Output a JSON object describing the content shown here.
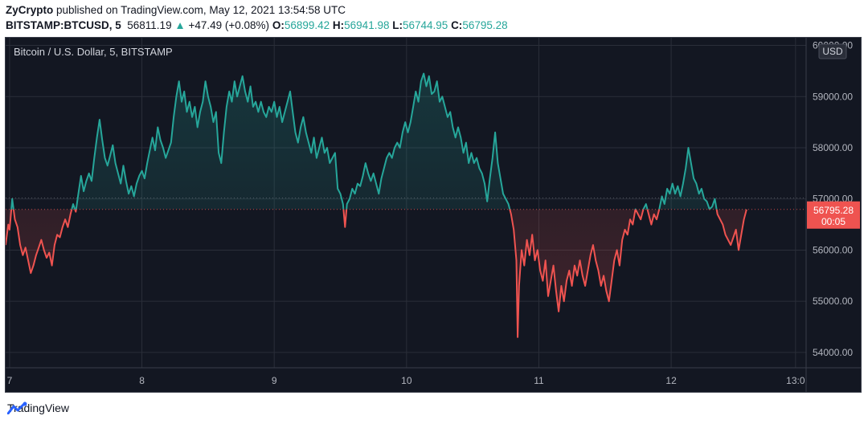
{
  "header": {
    "author": "ZyCrypto",
    "published_text": "published on TradingView.com, May 12, 2021 13:54:58 UTC",
    "symbol": "BITSTAMP:BTCUSD, 5",
    "last": "56811.19",
    "change_arrow": "▲",
    "change": "+47.49 (+0.08%)",
    "o_label": "O:",
    "o_value": "56899.42",
    "h_label": "H:",
    "h_value": "56941.98",
    "l_label": "L:",
    "l_value": "56744.95",
    "c_label": "C:",
    "c_value": "56795.28"
  },
  "chart_data": {
    "type": "line",
    "title": "Bitcoin / U.S. Dollar, 5, BITSTAMP",
    "currency": "USD",
    "baseline_price": 56795.28,
    "current_price_label": "56795.28",
    "countdown": "00:05",
    "x_ticks": [
      "7",
      "8",
      "9",
      "10",
      "11",
      "12",
      "13:0"
    ],
    "y_ticks": [
      60000,
      59000,
      58000,
      57000,
      56000,
      55000,
      54000
    ],
    "y_tick_labels": [
      "60000.00",
      "59000.00",
      "58000.00",
      "57000.00",
      "56000.00",
      "55000.00",
      "54000.00"
    ],
    "ylim": [
      53700,
      60150
    ],
    "x_unit": "day (May 2021)",
    "xlim": [
      6.97,
      13.02
    ],
    "grid": true,
    "colors": {
      "up": "#26a69a",
      "down": "#ef5350",
      "background": "#131722",
      "grid": "#2a2e39",
      "text": "#b2b5be"
    },
    "points": [
      [
        6.97,
        56100
      ],
      [
        6.99,
        56500
      ],
      [
        7.0,
        56400
      ],
      [
        7.01,
        56700
      ],
      [
        7.02,
        57000
      ],
      [
        7.04,
        56600
      ],
      [
        7.06,
        56450
      ],
      [
        7.08,
        56100
      ],
      [
        7.1,
        55900
      ],
      [
        7.12,
        56050
      ],
      [
        7.14,
        55800
      ],
      [
        7.16,
        55550
      ],
      [
        7.18,
        55700
      ],
      [
        7.2,
        55900
      ],
      [
        7.22,
        56050
      ],
      [
        7.24,
        56200
      ],
      [
        7.26,
        56000
      ],
      [
        7.28,
        55850
      ],
      [
        7.3,
        55950
      ],
      [
        7.32,
        55700
      ],
      [
        7.34,
        56100
      ],
      [
        7.36,
        56300
      ],
      [
        7.38,
        56250
      ],
      [
        7.4,
        56450
      ],
      [
        7.42,
        56600
      ],
      [
        7.44,
        56450
      ],
      [
        7.46,
        56700
      ],
      [
        7.48,
        56900
      ],
      [
        7.5,
        56750
      ],
      [
        7.52,
        57100
      ],
      [
        7.54,
        57450
      ],
      [
        7.56,
        57150
      ],
      [
        7.58,
        57350
      ],
      [
        7.6,
        57500
      ],
      [
        7.62,
        57350
      ],
      [
        7.64,
        57800
      ],
      [
        7.66,
        58200
      ],
      [
        7.68,
        58550
      ],
      [
        7.7,
        58150
      ],
      [
        7.72,
        57800
      ],
      [
        7.74,
        57650
      ],
      [
        7.76,
        57850
      ],
      [
        7.78,
        58050
      ],
      [
        7.8,
        57700
      ],
      [
        7.82,
        57500
      ],
      [
        7.84,
        57300
      ],
      [
        7.86,
        57650
      ],
      [
        7.88,
        57350
      ],
      [
        7.9,
        57100
      ],
      [
        7.92,
        57250
      ],
      [
        7.94,
        57050
      ],
      [
        7.96,
        57300
      ],
      [
        7.98,
        57450
      ],
      [
        8.0,
        57550
      ],
      [
        8.02,
        57400
      ],
      [
        8.04,
        57700
      ],
      [
        8.06,
        57950
      ],
      [
        8.08,
        58200
      ],
      [
        8.1,
        57950
      ],
      [
        8.12,
        58400
      ],
      [
        8.14,
        58150
      ],
      [
        8.16,
        58000
      ],
      [
        8.18,
        57800
      ],
      [
        8.2,
        57950
      ],
      [
        8.22,
        58100
      ],
      [
        8.24,
        58600
      ],
      [
        8.26,
        59000
      ],
      [
        8.28,
        59300
      ],
      [
        8.3,
        58900
      ],
      [
        8.32,
        59100
      ],
      [
        8.34,
        58700
      ],
      [
        8.36,
        58900
      ],
      [
        8.38,
        58600
      ],
      [
        8.4,
        58800
      ],
      [
        8.42,
        58400
      ],
      [
        8.44,
        58700
      ],
      [
        8.46,
        58900
      ],
      [
        8.48,
        59300
      ],
      [
        8.5,
        59000
      ],
      [
        8.52,
        58800
      ],
      [
        8.54,
        58500
      ],
      [
        8.56,
        58700
      ],
      [
        8.58,
        57900
      ],
      [
        8.6,
        57700
      ],
      [
        8.62,
        58300
      ],
      [
        8.64,
        58800
      ],
      [
        8.66,
        59100
      ],
      [
        8.68,
        58900
      ],
      [
        8.7,
        59300
      ],
      [
        8.72,
        59000
      ],
      [
        8.74,
        59200
      ],
      [
        8.76,
        59400
      ],
      [
        8.78,
        59100
      ],
      [
        8.8,
        58900
      ],
      [
        8.82,
        59200
      ],
      [
        8.84,
        58800
      ],
      [
        8.86,
        58900
      ],
      [
        8.88,
        58700
      ],
      [
        8.9,
        58900
      ],
      [
        8.92,
        58700
      ],
      [
        8.94,
        58600
      ],
      [
        8.96,
        58800
      ],
      [
        8.98,
        58700
      ],
      [
        9.0,
        58900
      ],
      [
        9.02,
        58600
      ],
      [
        9.04,
        58800
      ],
      [
        9.06,
        58500
      ],
      [
        9.08,
        58700
      ],
      [
        9.1,
        58900
      ],
      [
        9.12,
        59100
      ],
      [
        9.14,
        58700
      ],
      [
        9.16,
        58300
      ],
      [
        9.18,
        58100
      ],
      [
        9.2,
        58400
      ],
      [
        9.22,
        58600
      ],
      [
        9.24,
        58300
      ],
      [
        9.26,
        58100
      ],
      [
        9.28,
        57900
      ],
      [
        9.3,
        58200
      ],
      [
        9.32,
        57800
      ],
      [
        9.34,
        58000
      ],
      [
        9.36,
        58200
      ],
      [
        9.38,
        57900
      ],
      [
        9.4,
        58000
      ],
      [
        9.42,
        57700
      ],
      [
        9.44,
        57800
      ],
      [
        9.46,
        57900
      ],
      [
        9.48,
        57200
      ],
      [
        9.5,
        57100
      ],
      [
        9.52,
        56900
      ],
      [
        9.535,
        56450
      ],
      [
        9.55,
        56900
      ],
      [
        9.57,
        57000
      ],
      [
        9.59,
        57200
      ],
      [
        9.61,
        57100
      ],
      [
        9.63,
        57300
      ],
      [
        9.65,
        57250
      ],
      [
        9.67,
        57450
      ],
      [
        9.69,
        57700
      ],
      [
        9.71,
        57500
      ],
      [
        9.73,
        57350
      ],
      [
        9.75,
        57500
      ],
      [
        9.77,
        57300
      ],
      [
        9.79,
        57100
      ],
      [
        9.81,
        57400
      ],
      [
        9.83,
        57600
      ],
      [
        9.85,
        57800
      ],
      [
        9.87,
        57900
      ],
      [
        9.89,
        57800
      ],
      [
        9.91,
        58000
      ],
      [
        9.93,
        58100
      ],
      [
        9.95,
        58000
      ],
      [
        9.97,
        58300
      ],
      [
        9.99,
        58500
      ],
      [
        10.01,
        58300
      ],
      [
        10.03,
        58500
      ],
      [
        10.05,
        58800
      ],
      [
        10.07,
        59100
      ],
      [
        10.09,
        58900
      ],
      [
        10.11,
        59300
      ],
      [
        10.13,
        59450
      ],
      [
        10.15,
        59200
      ],
      [
        10.17,
        59400
      ],
      [
        10.19,
        59050
      ],
      [
        10.21,
        59100
      ],
      [
        10.23,
        59300
      ],
      [
        10.25,
        58900
      ],
      [
        10.27,
        59000
      ],
      [
        10.29,
        58800
      ],
      [
        10.31,
        58600
      ],
      [
        10.33,
        58700
      ],
      [
        10.35,
        58400
      ],
      [
        10.37,
        58200
      ],
      [
        10.39,
        58400
      ],
      [
        10.41,
        58200
      ],
      [
        10.43,
        57900
      ],
      [
        10.45,
        58100
      ],
      [
        10.47,
        57700
      ],
      [
        10.49,
        57900
      ],
      [
        10.51,
        57700
      ],
      [
        10.53,
        57800
      ],
      [
        10.55,
        57600
      ],
      [
        10.57,
        57500
      ],
      [
        10.59,
        57300
      ],
      [
        10.61,
        56950
      ],
      [
        10.63,
        57400
      ],
      [
        10.65,
        57800
      ],
      [
        10.67,
        58300
      ],
      [
        10.69,
        57700
      ],
      [
        10.71,
        57400
      ],
      [
        10.73,
        57100
      ],
      [
        10.75,
        57000
      ],
      [
        10.77,
        56900
      ],
      [
        10.79,
        56700
      ],
      [
        10.81,
        56400
      ],
      [
        10.83,
        55800
      ],
      [
        10.84,
        54300
      ],
      [
        10.85,
        55300
      ],
      [
        10.87,
        56000
      ],
      [
        10.89,
        55700
      ],
      [
        10.91,
        56200
      ],
      [
        10.93,
        55900
      ],
      [
        10.95,
        56300
      ],
      [
        10.97,
        55800
      ],
      [
        10.99,
        56000
      ],
      [
        11.01,
        55600
      ],
      [
        11.03,
        55400
      ],
      [
        11.05,
        55800
      ],
      [
        11.07,
        55100
      ],
      [
        11.09,
        55400
      ],
      [
        11.11,
        55700
      ],
      [
        11.13,
        55200
      ],
      [
        11.15,
        54800
      ],
      [
        11.17,
        55300
      ],
      [
        11.19,
        55000
      ],
      [
        11.21,
        55400
      ],
      [
        11.23,
        55600
      ],
      [
        11.25,
        55300
      ],
      [
        11.27,
        55700
      ],
      [
        11.29,
        55500
      ],
      [
        11.31,
        55800
      ],
      [
        11.33,
        55500
      ],
      [
        11.35,
        55300
      ],
      [
        11.37,
        55600
      ],
      [
        11.39,
        55900
      ],
      [
        11.41,
        56100
      ],
      [
        11.43,
        55800
      ],
      [
        11.45,
        55600
      ],
      [
        11.47,
        55300
      ],
      [
        11.49,
        55500
      ],
      [
        11.51,
        55200
      ],
      [
        11.53,
        55000
      ],
      [
        11.55,
        55400
      ],
      [
        11.57,
        55800
      ],
      [
        11.59,
        56000
      ],
      [
        11.61,
        55700
      ],
      [
        11.63,
        56200
      ],
      [
        11.65,
        56400
      ],
      [
        11.67,
        56300
      ],
      [
        11.69,
        56600
      ],
      [
        11.71,
        56500
      ],
      [
        11.73,
        56800
      ],
      [
        11.75,
        56700
      ],
      [
        11.77,
        56600
      ],
      [
        11.79,
        56800
      ],
      [
        11.81,
        56900
      ],
      [
        11.83,
        56700
      ],
      [
        11.85,
        56500
      ],
      [
        11.87,
        56700
      ],
      [
        11.89,
        56600
      ],
      [
        11.91,
        56800
      ],
      [
        11.93,
        57050
      ],
      [
        11.95,
        56900
      ],
      [
        11.97,
        57200
      ],
      [
        11.99,
        57100
      ],
      [
        12.01,
        57300
      ],
      [
        12.03,
        57100
      ],
      [
        12.05,
        57250
      ],
      [
        12.07,
        57050
      ],
      [
        12.09,
        57300
      ],
      [
        12.11,
        57600
      ],
      [
        12.13,
        58000
      ],
      [
        12.15,
        57700
      ],
      [
        12.17,
        57400
      ],
      [
        12.19,
        57300
      ],
      [
        12.21,
        57100
      ],
      [
        12.23,
        57200
      ],
      [
        12.25,
        57000
      ],
      [
        12.27,
        56950
      ],
      [
        12.29,
        56800
      ],
      [
        12.31,
        56850
      ],
      [
        12.33,
        57000
      ],
      [
        12.35,
        56700
      ],
      [
        12.37,
        56600
      ],
      [
        12.39,
        56500
      ],
      [
        12.41,
        56300
      ],
      [
        12.43,
        56200
      ],
      [
        12.45,
        56100
      ],
      [
        12.47,
        56250
      ],
      [
        12.49,
        56400
      ],
      [
        12.51,
        56000
      ],
      [
        12.53,
        56300
      ],
      [
        12.55,
        56600
      ],
      [
        12.57,
        56795
      ]
    ]
  },
  "footer": {
    "brand": "TradingView"
  }
}
